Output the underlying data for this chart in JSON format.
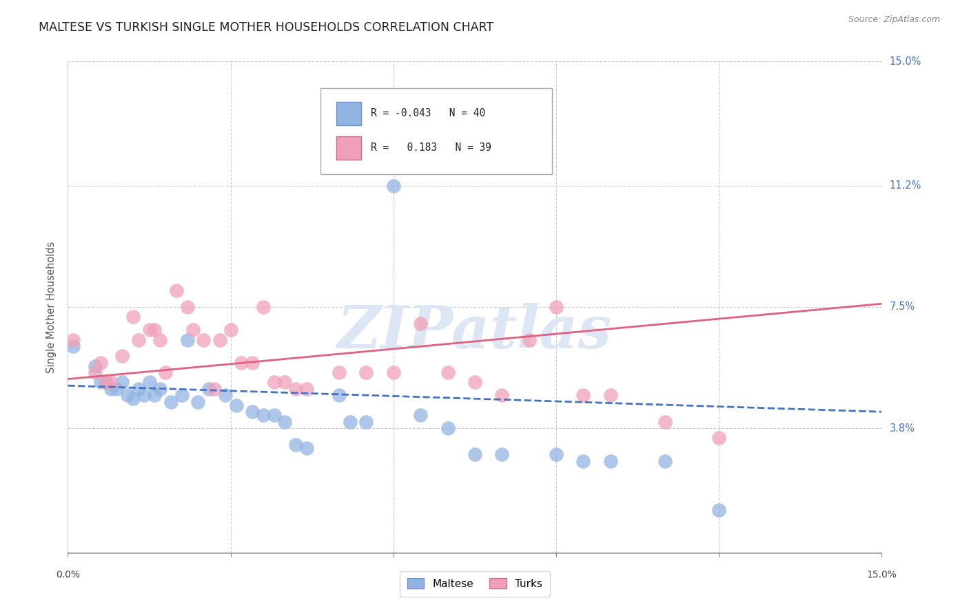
{
  "title": "MALTESE VS TURKISH SINGLE MOTHER HOUSEHOLDS CORRELATION CHART",
  "source": "Source: ZipAtlas.com",
  "ylabel": "Single Mother Households",
  "xmin": 0.0,
  "xmax": 0.15,
  "ymin": 0.0,
  "ymax": 0.15,
  "ytick_vals": [
    0.038,
    0.075,
    0.112,
    0.15
  ],
  "ytick_labels": [
    "3.8%",
    "7.5%",
    "11.2%",
    "15.0%"
  ],
  "xtick_vals": [
    0.0,
    0.03,
    0.06,
    0.09,
    0.12,
    0.15
  ],
  "maltese_color": "#92b4e3",
  "turks_color": "#f0a0b8",
  "maltese_line_color": "#4472c4",
  "turks_line_color": "#e06080",
  "label_color": "#4472c4",
  "watermark_color": "#dce6f5",
  "grid_color": "#cccccc",
  "maltese_line_start_x": 0.0,
  "maltese_line_start_y": 0.051,
  "maltese_line_end_x": 0.15,
  "maltese_line_end_y": 0.043,
  "turks_line_start_x": 0.0,
  "turks_line_start_y": 0.053,
  "turks_line_end_x": 0.15,
  "turks_line_end_y": 0.076,
  "maltese_scatter": [
    [
      0.001,
      0.063
    ],
    [
      0.005,
      0.057
    ],
    [
      0.006,
      0.052
    ],
    [
      0.007,
      0.052
    ],
    [
      0.008,
      0.05
    ],
    [
      0.009,
      0.05
    ],
    [
      0.01,
      0.052
    ],
    [
      0.011,
      0.048
    ],
    [
      0.012,
      0.047
    ],
    [
      0.013,
      0.05
    ],
    [
      0.014,
      0.048
    ],
    [
      0.015,
      0.052
    ],
    [
      0.016,
      0.048
    ],
    [
      0.017,
      0.05
    ],
    [
      0.019,
      0.046
    ],
    [
      0.021,
      0.048
    ],
    [
      0.022,
      0.065
    ],
    [
      0.024,
      0.046
    ],
    [
      0.026,
      0.05
    ],
    [
      0.029,
      0.048
    ],
    [
      0.031,
      0.045
    ],
    [
      0.034,
      0.043
    ],
    [
      0.036,
      0.042
    ],
    [
      0.038,
      0.042
    ],
    [
      0.04,
      0.04
    ],
    [
      0.042,
      0.033
    ],
    [
      0.044,
      0.032
    ],
    [
      0.05,
      0.048
    ],
    [
      0.052,
      0.04
    ],
    [
      0.055,
      0.04
    ],
    [
      0.06,
      0.112
    ],
    [
      0.065,
      0.042
    ],
    [
      0.07,
      0.038
    ],
    [
      0.075,
      0.03
    ],
    [
      0.08,
      0.03
    ],
    [
      0.09,
      0.03
    ],
    [
      0.095,
      0.028
    ],
    [
      0.1,
      0.028
    ],
    [
      0.11,
      0.028
    ],
    [
      0.12,
      0.013
    ]
  ],
  "turks_scatter": [
    [
      0.001,
      0.065
    ],
    [
      0.005,
      0.055
    ],
    [
      0.006,
      0.058
    ],
    [
      0.007,
      0.052
    ],
    [
      0.008,
      0.052
    ],
    [
      0.01,
      0.06
    ],
    [
      0.012,
      0.072
    ],
    [
      0.013,
      0.065
    ],
    [
      0.015,
      0.068
    ],
    [
      0.016,
      0.068
    ],
    [
      0.017,
      0.065
    ],
    [
      0.018,
      0.055
    ],
    [
      0.02,
      0.08
    ],
    [
      0.022,
      0.075
    ],
    [
      0.023,
      0.068
    ],
    [
      0.025,
      0.065
    ],
    [
      0.027,
      0.05
    ],
    [
      0.028,
      0.065
    ],
    [
      0.03,
      0.068
    ],
    [
      0.032,
      0.058
    ],
    [
      0.034,
      0.058
    ],
    [
      0.036,
      0.075
    ],
    [
      0.038,
      0.052
    ],
    [
      0.04,
      0.052
    ],
    [
      0.042,
      0.05
    ],
    [
      0.044,
      0.05
    ],
    [
      0.05,
      0.055
    ],
    [
      0.055,
      0.055
    ],
    [
      0.06,
      0.055
    ],
    [
      0.065,
      0.07
    ],
    [
      0.07,
      0.055
    ],
    [
      0.075,
      0.052
    ],
    [
      0.08,
      0.048
    ],
    [
      0.085,
      0.065
    ],
    [
      0.09,
      0.075
    ],
    [
      0.095,
      0.048
    ],
    [
      0.1,
      0.048
    ],
    [
      0.11,
      0.04
    ],
    [
      0.12,
      0.035
    ]
  ]
}
